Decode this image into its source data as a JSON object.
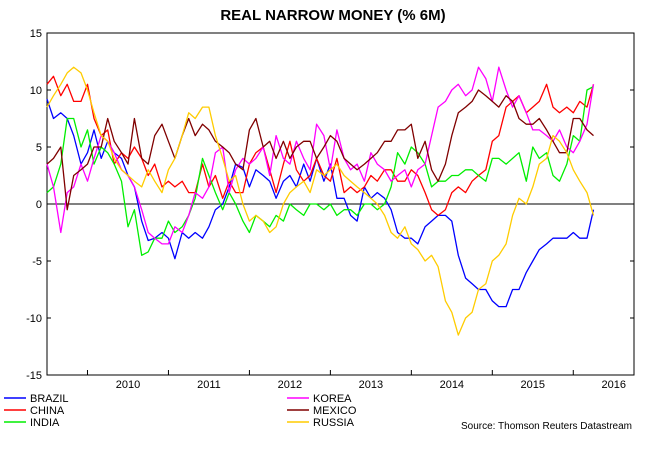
{
  "chart_data": {
    "type": "line",
    "title": "REAL NARROW MONEY (% 6M)",
    "xlabel": "",
    "ylabel": "",
    "ylim": [
      -15,
      15
    ],
    "yticks": [
      15,
      10,
      5,
      0,
      -5,
      -10,
      -15
    ],
    "xlim": [
      2009.5,
      2016.75
    ],
    "xticks": [
      {
        "label": "2010",
        "at": 2010
      },
      {
        "label": "2011",
        "at": 2011
      },
      {
        "label": "2012",
        "at": 2012
      },
      {
        "label": "2013",
        "at": 2013
      },
      {
        "label": "2014",
        "at": 2014
      },
      {
        "label": "2015",
        "at": 2015
      },
      {
        "label": "2016",
        "at": 2016
      }
    ],
    "zero_line": true,
    "grid": false,
    "source": "Source: Thomson Reuters Datastream",
    "series": [
      {
        "name": "BRAZIL",
        "color": "#0000ff",
        "x": [
          2009.5,
          2009.58,
          2009.67,
          2009.75,
          2009.83,
          2009.92,
          2010.0,
          2010.08,
          2010.17,
          2010.25,
          2010.33,
          2010.42,
          2010.5,
          2010.58,
          2010.67,
          2010.75,
          2010.83,
          2010.92,
          2011.0,
          2011.08,
          2011.17,
          2011.25,
          2011.33,
          2011.42,
          2011.5,
          2011.58,
          2011.67,
          2011.75,
          2011.83,
          2011.92,
          2012.0,
          2012.08,
          2012.17,
          2012.25,
          2012.33,
          2012.42,
          2012.5,
          2012.58,
          2012.67,
          2012.75,
          2012.83,
          2012.92,
          2013.0,
          2013.08,
          2013.17,
          2013.25,
          2013.33,
          2013.42,
          2013.5,
          2013.58,
          2013.67,
          2013.75,
          2013.83,
          2013.92,
          2014.0,
          2014.08,
          2014.17,
          2014.25,
          2014.33,
          2014.42,
          2014.5,
          2014.58,
          2014.67,
          2014.75,
          2014.83,
          2014.92,
          2015.0,
          2015.08,
          2015.17,
          2015.25,
          2015.33,
          2015.42,
          2015.5,
          2015.58,
          2015.67,
          2015.75,
          2015.83,
          2015.92,
          2016.0,
          2016.08,
          2016.17,
          2016.25
        ],
        "values": [
          9.2,
          7.5,
          8.0,
          7.5,
          6.0,
          3.5,
          4.5,
          6.5,
          4.0,
          5.5,
          4.5,
          4.0,
          2.5,
          1.5,
          -1.5,
          -3.2,
          -3.0,
          -2.5,
          -3.0,
          -4.8,
          -2.5,
          -3.0,
          -2.5,
          -3.0,
          -2.0,
          -0.5,
          0.0,
          1.5,
          3.5,
          3.2,
          1.5,
          3.0,
          2.5,
          2.0,
          0.5,
          2.0,
          2.5,
          1.5,
          3.5,
          2.0,
          4.0,
          2.0,
          3.5,
          0.5,
          0.5,
          -1.0,
          -1.5,
          1.5,
          0.5,
          1.0,
          0.5,
          -0.5,
          -2.5,
          -3.0,
          -3.0,
          -3.5,
          -2.0,
          -1.5,
          -1.0,
          -1.0,
          -1.5,
          -4.5,
          -6.5,
          -7.0,
          -7.5,
          -7.5,
          -8.5,
          -9.0,
          -9.0,
          -7.5,
          -7.5,
          -6.0,
          -5.0,
          -4.0,
          -3.5,
          -3.0,
          -3.0,
          -3.0,
          -2.5,
          -3.0,
          -3.0,
          -0.5
        ]
      },
      {
        "name": "CHINA",
        "color": "#ff0000",
        "x": [
          2009.5,
          2009.58,
          2009.67,
          2009.75,
          2009.83,
          2009.92,
          2010.0,
          2010.08,
          2010.17,
          2010.25,
          2010.33,
          2010.42,
          2010.5,
          2010.58,
          2010.67,
          2010.75,
          2010.83,
          2010.92,
          2011.0,
          2011.08,
          2011.17,
          2011.25,
          2011.33,
          2011.42,
          2011.5,
          2011.58,
          2011.67,
          2011.75,
          2011.83,
          2011.92,
          2012.0,
          2012.08,
          2012.17,
          2012.25,
          2012.33,
          2012.42,
          2012.5,
          2012.58,
          2012.67,
          2012.75,
          2012.83,
          2012.92,
          2013.0,
          2013.08,
          2013.17,
          2013.25,
          2013.33,
          2013.42,
          2013.5,
          2013.58,
          2013.67,
          2013.75,
          2013.83,
          2013.92,
          2014.0,
          2014.08,
          2014.17,
          2014.25,
          2014.33,
          2014.42,
          2014.5,
          2014.58,
          2014.67,
          2014.75,
          2014.83,
          2014.92,
          2015.0,
          2015.08,
          2015.17,
          2015.25,
          2015.33,
          2015.42,
          2015.5,
          2015.58,
          2015.67,
          2015.75,
          2015.83,
          2015.92,
          2016.0,
          2016.08,
          2016.17,
          2016.25
        ],
        "values": [
          10.5,
          11.2,
          9.5,
          10.5,
          9.0,
          9.0,
          10.5,
          7.5,
          6.0,
          6.5,
          3.5,
          4.5,
          4.0,
          5.0,
          4.0,
          2.5,
          3.5,
          1.5,
          2.0,
          1.5,
          2.0,
          1.0,
          1.0,
          3.5,
          1.5,
          2.5,
          0.5,
          2.0,
          1.0,
          1.0,
          3.5,
          4.5,
          5.0,
          3.0,
          1.0,
          3.5,
          5.5,
          3.0,
          2.0,
          2.5,
          4.0,
          2.5,
          2.0,
          4.0,
          1.0,
          1.5,
          1.0,
          1.5,
          2.5,
          2.0,
          3.0,
          3.0,
          2.0,
          2.0,
          3.0,
          2.5,
          1.0,
          -0.5,
          -1.0,
          -0.5,
          1.0,
          1.5,
          1.0,
          2.0,
          2.5,
          3.0,
          5.5,
          6.0,
          8.5,
          9.0,
          9.5,
          8.0,
          8.5,
          9.0,
          10.5,
          8.5,
          8.0,
          8.5,
          8.0,
          9.0,
          8.5,
          10.5
        ]
      },
      {
        "name": "INDIA",
        "color": "#00ee00",
        "x": [
          2009.5,
          2009.58,
          2009.67,
          2009.75,
          2009.83,
          2009.92,
          2010.0,
          2010.08,
          2010.17,
          2010.25,
          2010.33,
          2010.42,
          2010.5,
          2010.58,
          2010.67,
          2010.75,
          2010.83,
          2010.92,
          2011.0,
          2011.08,
          2011.17,
          2011.25,
          2011.33,
          2011.42,
          2011.5,
          2011.58,
          2011.67,
          2011.75,
          2011.83,
          2011.92,
          2012.0,
          2012.08,
          2012.17,
          2012.25,
          2012.33,
          2012.42,
          2012.5,
          2012.58,
          2012.67,
          2012.75,
          2012.83,
          2012.92,
          2013.0,
          2013.08,
          2013.17,
          2013.25,
          2013.33,
          2013.42,
          2013.5,
          2013.58,
          2013.67,
          2013.75,
          2013.83,
          2013.92,
          2014.0,
          2014.08,
          2014.17,
          2014.25,
          2014.33,
          2014.42,
          2014.5,
          2014.58,
          2014.67,
          2014.75,
          2014.83,
          2014.92,
          2015.0,
          2015.08,
          2015.17,
          2015.25,
          2015.33,
          2015.42,
          2015.5,
          2015.58,
          2015.67,
          2015.75,
          2015.83,
          2015.92,
          2016.0,
          2016.08,
          2016.17,
          2016.25
        ],
        "values": [
          1.0,
          1.5,
          3.5,
          7.5,
          7.5,
          5.0,
          6.5,
          3.5,
          5.0,
          4.5,
          3.5,
          2.0,
          -2.0,
          -0.5,
          -4.5,
          -4.2,
          -3.0,
          -3.0,
          -1.5,
          -2.5,
          -2.0,
          -1.0,
          0.5,
          4.0,
          2.5,
          1.0,
          -0.5,
          1.0,
          0.0,
          -1.5,
          -2.5,
          -1.0,
          -1.5,
          -2.0,
          -1.0,
          -1.5,
          0.0,
          -0.5,
          -1.0,
          0.0,
          0.0,
          -0.5,
          0.0,
          -1.0,
          -0.5,
          -0.5,
          -1.0,
          0.0,
          0.0,
          -0.5,
          0.0,
          1.5,
          4.5,
          3.5,
          5.0,
          4.5,
          3.5,
          1.5,
          2.0,
          2.0,
          2.5,
          2.5,
          3.0,
          3.0,
          2.5,
          2.0,
          4.0,
          4.0,
          3.5,
          4.0,
          4.5,
          2.0,
          5.0,
          4.0,
          4.5,
          2.5,
          2.0,
          3.5,
          6.0,
          5.5,
          10.0,
          10.3
        ]
      },
      {
        "name": "KOREA",
        "color": "#ff00ff",
        "x": [
          2009.5,
          2009.58,
          2009.67,
          2009.75,
          2009.83,
          2009.92,
          2010.0,
          2010.08,
          2010.17,
          2010.25,
          2010.33,
          2010.42,
          2010.5,
          2010.58,
          2010.67,
          2010.75,
          2010.83,
          2010.92,
          2011.0,
          2011.08,
          2011.17,
          2011.25,
          2011.33,
          2011.42,
          2011.5,
          2011.58,
          2011.67,
          2011.75,
          2011.83,
          2011.92,
          2012.0,
          2012.08,
          2012.17,
          2012.25,
          2012.33,
          2012.42,
          2012.5,
          2012.58,
          2012.67,
          2012.75,
          2012.83,
          2012.92,
          2013.0,
          2013.08,
          2013.17,
          2013.25,
          2013.33,
          2013.42,
          2013.5,
          2013.58,
          2013.67,
          2013.75,
          2013.83,
          2013.92,
          2014.0,
          2014.08,
          2014.17,
          2014.25,
          2014.33,
          2014.42,
          2014.5,
          2014.58,
          2014.67,
          2014.75,
          2014.83,
          2014.92,
          2015.0,
          2015.08,
          2015.17,
          2015.25,
          2015.33,
          2015.42,
          2015.5,
          2015.58,
          2015.67,
          2015.75,
          2015.83,
          2015.92,
          2016.0,
          2016.08,
          2016.17,
          2016.25
        ],
        "values": [
          3.5,
          1.5,
          -2.5,
          1.0,
          1.5,
          3.5,
          2.0,
          4.0,
          6.0,
          5.5,
          4.5,
          3.0,
          2.5,
          1.5,
          -0.5,
          -2.5,
          -3.0,
          -3.5,
          -3.5,
          -2.0,
          -2.5,
          -1.0,
          1.0,
          0.5,
          1.5,
          4.5,
          5.0,
          1.0,
          3.0,
          4.0,
          3.5,
          4.0,
          5.0,
          2.5,
          6.0,
          4.0,
          3.5,
          5.5,
          4.0,
          3.0,
          7.0,
          6.0,
          3.0,
          6.5,
          4.0,
          3.0,
          3.5,
          2.0,
          4.5,
          3.5,
          3.0,
          2.0,
          2.5,
          3.0,
          1.5,
          3.0,
          3.5,
          6.0,
          8.5,
          9.0,
          10.0,
          10.5,
          9.5,
          10.0,
          12.0,
          11.0,
          9.0,
          12.0,
          10.0,
          8.5,
          9.5,
          8.0,
          6.5,
          6.5,
          6.0,
          5.5,
          6.5,
          5.0,
          4.5,
          5.5,
          7.0,
          10.5
        ]
      },
      {
        "name": "MEXICO",
        "color": "#800000",
        "x": [
          2009.5,
          2009.58,
          2009.67,
          2009.75,
          2009.83,
          2009.92,
          2010.0,
          2010.08,
          2010.17,
          2010.25,
          2010.33,
          2010.42,
          2010.5,
          2010.58,
          2010.67,
          2010.75,
          2010.83,
          2010.92,
          2011.0,
          2011.08,
          2011.17,
          2011.25,
          2011.33,
          2011.42,
          2011.5,
          2011.58,
          2011.67,
          2011.75,
          2011.83,
          2011.92,
          2012.0,
          2012.08,
          2012.17,
          2012.25,
          2012.33,
          2012.42,
          2012.5,
          2012.58,
          2012.67,
          2012.75,
          2012.83,
          2012.92,
          2013.0,
          2013.08,
          2013.17,
          2013.25,
          2013.33,
          2013.42,
          2013.5,
          2013.58,
          2013.67,
          2013.75,
          2013.83,
          2013.92,
          2014.0,
          2014.08,
          2014.17,
          2014.25,
          2014.33,
          2014.42,
          2014.5,
          2014.58,
          2014.67,
          2014.75,
          2014.83,
          2014.92,
          2015.0,
          2015.08,
          2015.17,
          2015.25,
          2015.33,
          2015.42,
          2015.5,
          2015.58,
          2015.67,
          2015.75,
          2015.83,
          2015.92,
          2016.0,
          2016.08,
          2016.17,
          2016.25
        ],
        "values": [
          3.5,
          4.0,
          5.0,
          -0.5,
          2.5,
          3.0,
          3.5,
          5.0,
          5.0,
          7.5,
          5.5,
          4.5,
          3.5,
          7.5,
          4.0,
          3.5,
          6.0,
          7.0,
          5.5,
          4.0,
          6.0,
          7.5,
          6.0,
          7.0,
          6.5,
          5.5,
          5.0,
          4.5,
          3.5,
          3.0,
          6.5,
          7.5,
          5.0,
          5.5,
          4.0,
          5.5,
          4.0,
          5.0,
          5.5,
          5.5,
          4.0,
          5.0,
          6.0,
          5.5,
          4.0,
          3.5,
          3.0,
          3.5,
          4.0,
          4.5,
          5.5,
          5.5,
          6.5,
          6.5,
          7.0,
          4.0,
          5.5,
          3.0,
          2.0,
          3.5,
          6.0,
          8.0,
          8.5,
          9.0,
          10.0,
          9.5,
          9.0,
          8.5,
          9.5,
          9.0,
          7.5,
          7.0,
          7.0,
          7.5,
          6.5,
          5.5,
          4.5,
          4.5,
          7.5,
          7.5,
          6.5,
          6.0
        ]
      },
      {
        "name": "RUSSIA",
        "color": "#ffcc00",
        "x": [
          2009.5,
          2009.58,
          2009.67,
          2009.75,
          2009.83,
          2009.92,
          2010.0,
          2010.08,
          2010.17,
          2010.25,
          2010.33,
          2010.42,
          2010.5,
          2010.58,
          2010.67,
          2010.75,
          2010.83,
          2010.92,
          2011.0,
          2011.08,
          2011.17,
          2011.25,
          2011.33,
          2011.42,
          2011.5,
          2011.58,
          2011.67,
          2011.75,
          2011.83,
          2011.92,
          2012.0,
          2012.08,
          2012.17,
          2012.25,
          2012.33,
          2012.42,
          2012.5,
          2012.58,
          2012.67,
          2012.75,
          2012.83,
          2012.92,
          2013.0,
          2013.08,
          2013.17,
          2013.25,
          2013.33,
          2013.42,
          2013.5,
          2013.58,
          2013.67,
          2013.75,
          2013.83,
          2013.92,
          2014.0,
          2014.08,
          2014.17,
          2014.25,
          2014.33,
          2014.42,
          2014.5,
          2014.58,
          2014.67,
          2014.75,
          2014.83,
          2014.92,
          2015.0,
          2015.08,
          2015.17,
          2015.25,
          2015.33,
          2015.42,
          2015.5,
          2015.58,
          2015.67,
          2015.75,
          2015.83,
          2015.92,
          2016.0,
          2016.08,
          2016.17,
          2016.25
        ],
        "values": [
          8.5,
          9.5,
          10.5,
          11.5,
          12.0,
          11.5,
          10.0,
          8.0,
          6.0,
          5.5,
          4.0,
          3.0,
          2.5,
          2.0,
          1.5,
          3.0,
          2.0,
          1.0,
          3.0,
          4.0,
          6.0,
          8.0,
          7.5,
          8.5,
          8.5,
          6.0,
          4.0,
          2.0,
          2.5,
          0.0,
          -1.5,
          -1.0,
          -1.5,
          -2.5,
          -2.0,
          0.0,
          1.0,
          1.5,
          2.0,
          1.0,
          3.0,
          2.5,
          3.0,
          3.5,
          2.5,
          2.0,
          1.5,
          1.0,
          0.5,
          0.0,
          -1.0,
          -2.5,
          -3.0,
          -2.0,
          -3.5,
          -4.0,
          -5.0,
          -4.5,
          -5.5,
          -8.5,
          -9.5,
          -11.5,
          -10.0,
          -9.5,
          -7.5,
          -7.0,
          -5.0,
          -4.5,
          -3.5,
          -1.0,
          0.5,
          0.0,
          1.5,
          3.5,
          4.0,
          6.0,
          5.5,
          4.5,
          3.0,
          2.0,
          1.0,
          -1.0
        ]
      }
    ],
    "legend": {
      "placement": "bottom",
      "columns": [
        [
          "BRAZIL",
          "CHINA",
          "INDIA"
        ],
        [
          "KOREA",
          "MEXICO",
          "RUSSIA"
        ]
      ]
    }
  }
}
